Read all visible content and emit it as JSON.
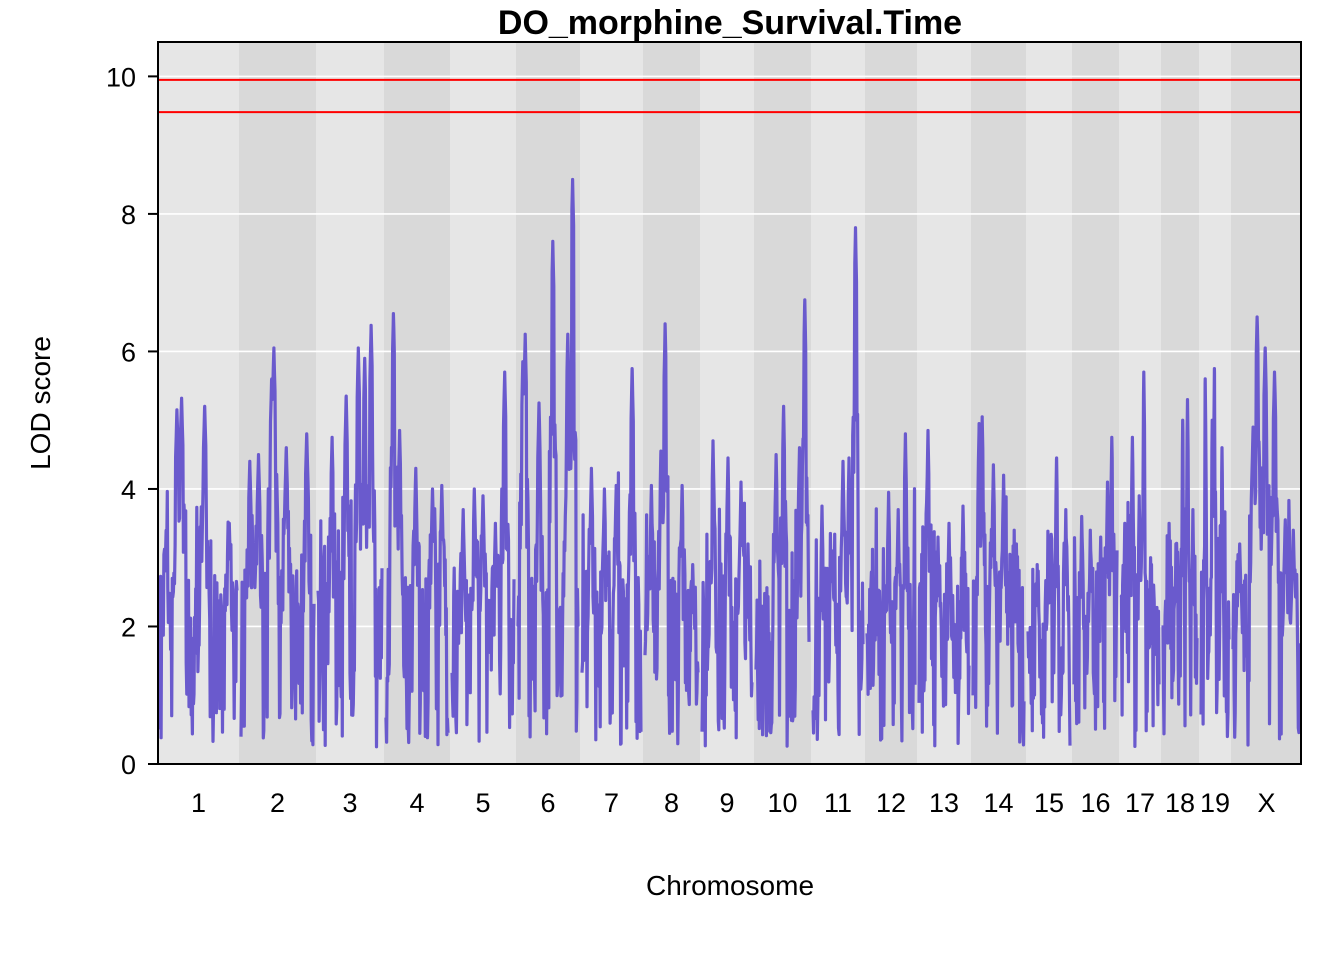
{
  "chart_data": {
    "type": "line",
    "title": "DO_morphine_Survival.Time",
    "xlabel": "Chromosome",
    "ylabel": "LOD score",
    "ylim": [
      0,
      10.5
    ],
    "yticks": [
      "0",
      "2",
      "4",
      "6",
      "8",
      "10"
    ],
    "grid": true,
    "colors": {
      "line": "#6a5acd",
      "threshold": "#ff0000",
      "band_light": "#e6e6e6",
      "band_dark": "#d9d9d9",
      "grid": "#ffffff"
    },
    "thresholds": [
      9.95,
      9.48
    ],
    "chromosomes": [
      {
        "label": "1",
        "peaks": [
          [
            0.08,
            3.4
          ],
          [
            0.22,
            5.15
          ],
          [
            0.28,
            5.32
          ],
          [
            0.58,
            5.2
          ],
          [
            0.9,
            3.5
          ]
        ]
      },
      {
        "label": "2",
        "peaks": [
          [
            0.12,
            4.4
          ],
          [
            0.24,
            4.5
          ],
          [
            0.42,
            5.6
          ],
          [
            0.45,
            6.05
          ],
          [
            0.62,
            4.6
          ],
          [
            0.9,
            4.8
          ]
        ]
      },
      {
        "label": "3",
        "peaks": [
          [
            0.22,
            4.75
          ],
          [
            0.44,
            5.35
          ],
          [
            0.63,
            6.05
          ],
          [
            0.73,
            5.9
          ],
          [
            0.83,
            6.38
          ]
        ]
      },
      {
        "label": "4",
        "peaks": [
          [
            0.12,
            6.55
          ],
          [
            0.22,
            4.85
          ],
          [
            0.48,
            4.3
          ],
          [
            0.75,
            4.0
          ],
          [
            0.9,
            4.05
          ]
        ]
      },
      {
        "label": "5",
        "peaks": [
          [
            0.18,
            3.7
          ],
          [
            0.36,
            4.0
          ],
          [
            0.5,
            3.9
          ],
          [
            0.7,
            3.5
          ],
          [
            0.85,
            5.7
          ]
        ]
      },
      {
        "label": "6",
        "peaks": [
          [
            0.08,
            5.85
          ],
          [
            0.12,
            6.25
          ],
          [
            0.35,
            5.25
          ],
          [
            0.58,
            7.6
          ],
          [
            0.83,
            6.25
          ],
          [
            0.91,
            8.5
          ]
        ]
      },
      {
        "label": "7",
        "peaks": [
          [
            0.16,
            4.3
          ],
          [
            0.38,
            4.0
          ],
          [
            0.58,
            4.05
          ],
          [
            0.85,
            5.75
          ]
        ]
      },
      {
        "label": "8",
        "peaks": [
          [
            0.12,
            4.05
          ],
          [
            0.3,
            4.55
          ],
          [
            0.38,
            6.4
          ],
          [
            0.7,
            4.05
          ],
          [
            0.9,
            2.9
          ]
        ]
      },
      {
        "label": "9",
        "peaks": [
          [
            0.22,
            4.7
          ],
          [
            0.52,
            4.45
          ],
          [
            0.78,
            4.1
          ],
          [
            0.92,
            3.2
          ]
        ]
      },
      {
        "label": "10",
        "peaks": [
          [
            0.38,
            4.5
          ],
          [
            0.52,
            5.2
          ],
          [
            0.82,
            4.6
          ],
          [
            0.92,
            6.75
          ]
        ]
      },
      {
        "label": "11",
        "peaks": [
          [
            0.18,
            3.75
          ],
          [
            0.38,
            3.1
          ],
          [
            0.6,
            4.4
          ],
          [
            0.72,
            4.45
          ],
          [
            0.85,
            7.8
          ]
        ]
      },
      {
        "label": "12",
        "peaks": [
          [
            0.22,
            2.5
          ],
          [
            0.45,
            3.95
          ],
          [
            0.65,
            3.7
          ],
          [
            0.8,
            4.8
          ]
        ]
      },
      {
        "label": "13",
        "peaks": [
          [
            0.18,
            4.85
          ],
          [
            0.38,
            3.3
          ],
          [
            0.6,
            3.5
          ],
          [
            0.88,
            3.75
          ]
        ]
      },
      {
        "label": "14",
        "peaks": [
          [
            0.12,
            4.95
          ],
          [
            0.18,
            5.05
          ],
          [
            0.4,
            4.35
          ],
          [
            0.6,
            4.2
          ],
          [
            0.85,
            3.2
          ]
        ]
      },
      {
        "label": "15",
        "peaks": [
          [
            0.22,
            2.9
          ],
          [
            0.48,
            3.15
          ],
          [
            0.68,
            4.45
          ],
          [
            0.9,
            3.7
          ]
        ]
      },
      {
        "label": "16",
        "peaks": [
          [
            0.18,
            3.6
          ],
          [
            0.38,
            3.4
          ],
          [
            0.62,
            3.3
          ],
          [
            0.78,
            4.1
          ],
          [
            0.88,
            4.75
          ]
        ]
      },
      {
        "label": "17",
        "peaks": [
          [
            0.1,
            3.5
          ],
          [
            0.3,
            4.75
          ],
          [
            0.48,
            3.9
          ],
          [
            0.6,
            5.7
          ],
          [
            0.78,
            3.0
          ]
        ]
      },
      {
        "label": "18",
        "peaks": [
          [
            0.18,
            3.5
          ],
          [
            0.38,
            3.2
          ],
          [
            0.58,
            5.0
          ],
          [
            0.72,
            5.3
          ],
          [
            0.88,
            3.7
          ]
        ]
      },
      {
        "label": "19",
        "peaks": [
          [
            0.15,
            5.6
          ],
          [
            0.4,
            5.0
          ],
          [
            0.48,
            5.75
          ],
          [
            0.75,
            4.6
          ]
        ]
      },
      {
        "label": "X",
        "peaks": [
          [
            0.1,
            3.2
          ],
          [
            0.3,
            4.9
          ],
          [
            0.36,
            6.5
          ],
          [
            0.48,
            6.05
          ],
          [
            0.62,
            5.7
          ],
          [
            0.78,
            3.55
          ],
          [
            0.9,
            3.4
          ]
        ]
      }
    ]
  }
}
